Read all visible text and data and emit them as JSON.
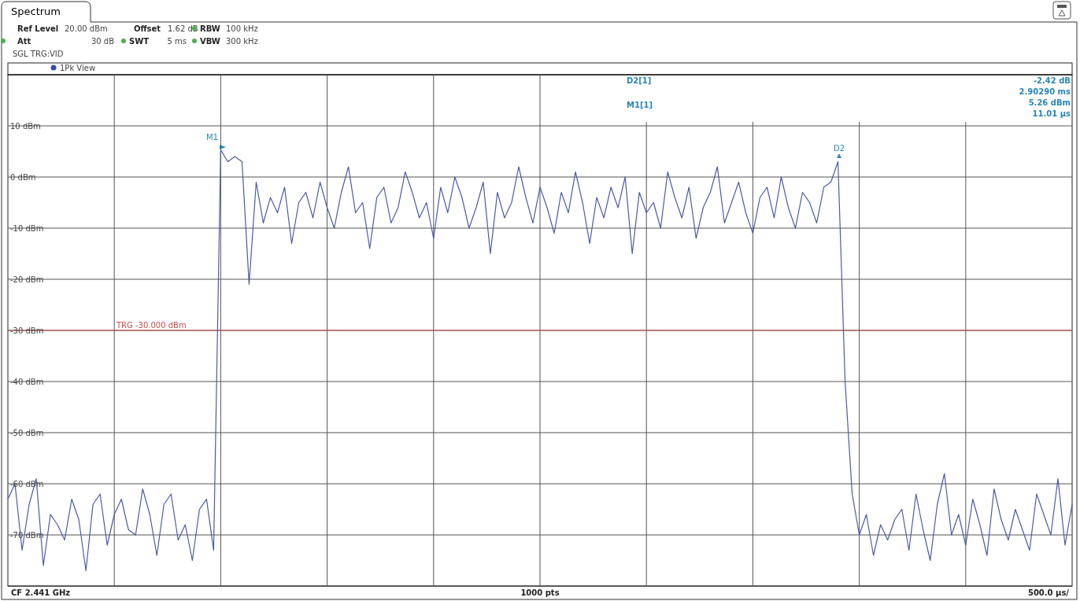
{
  "chart_data": {
    "type": "line",
    "categories": [
      null,
      null,
      null,
      null,
      null,
      null,
      null,
      null,
      null,
      null,
      null,
      null,
      null,
      null,
      null,
      null,
      null,
      null,
      null,
      null,
      null,
      null,
      null,
      null,
      null,
      null,
      null,
      null,
      null,
      null,
      null,
      null,
      null,
      null,
      null,
      null,
      null,
      null,
      null,
      null,
      null,
      null,
      null,
      null,
      null,
      null,
      null,
      null,
      null,
      null,
      null,
      null,
      null,
      null,
      null,
      null,
      null,
      null,
      null,
      null,
      null,
      null,
      null,
      null,
      null,
      null,
      null,
      null,
      null,
      null,
      null,
      null,
      null,
      null,
      null,
      null,
      null,
      null,
      null,
      null,
      null,
      null,
      null,
      null,
      null,
      null,
      null,
      null,
      null,
      null,
      null,
      null,
      null,
      null,
      null,
      null,
      null,
      null,
      null,
      null,
      null,
      null,
      null,
      null,
      null,
      null,
      null,
      null,
      null,
      null,
      null,
      null,
      null,
      null,
      null,
      null,
      null,
      null,
      null,
      null,
      null,
      null,
      null,
      null,
      null,
      null,
      null,
      null,
      null,
      null,
      null,
      null,
      null,
      null,
      null,
      null,
      null,
      null,
      null,
      null,
      null,
      null,
      null,
      null,
      null,
      null,
      null,
      null,
      null,
      null,
      null
    ],
    "series": [
      {
        "color": "#4a5aa8",
        "values": [
          -63,
          -60,
          -73,
          -64,
          -59,
          -76,
          -66,
          -68,
          -71,
          -63,
          -67,
          -77,
          -64,
          -62,
          -72,
          -66,
          -63,
          -69,
          -70,
          -61,
          -66,
          -74,
          -64,
          -62,
          -71,
          -68,
          -75,
          -65,
          -63,
          -73,
          5.3,
          3,
          4,
          3,
          -21,
          -1,
          -9,
          -4,
          -7,
          -2,
          -13,
          -5,
          -3,
          -8,
          -1,
          -6,
          -10,
          -3,
          2,
          -7,
          -5,
          -14,
          -4,
          -2,
          -9,
          -6,
          1,
          -3,
          -8,
          -5,
          -12,
          -2,
          -7,
          0,
          -4,
          -10,
          -6,
          -1,
          -15,
          -3,
          -8,
          -5,
          2,
          -4,
          -9,
          -2,
          -6,
          -11,
          -3,
          -7,
          1,
          -5,
          -13,
          -4,
          -8,
          -2,
          -6,
          0,
          -15,
          -3,
          -7,
          -5,
          -10,
          1,
          -4,
          -8,
          -2,
          -12,
          -6,
          -3,
          2,
          -9,
          -5,
          -1,
          -7,
          -11,
          -4,
          -2,
          -8,
          0,
          -6,
          -10,
          -3,
          -5,
          -9,
          -2,
          -1,
          3,
          -40,
          -62,
          -70,
          -66,
          -74,
          -68,
          -71,
          -67,
          -65,
          -73,
          -62,
          -69,
          -75,
          -64,
          -58,
          -70,
          -66,
          -72,
          -63,
          -68,
          -74,
          -61,
          -67,
          -71,
          -65,
          -69,
          -73,
          -62,
          -66,
          -70,
          -59,
          -72,
          -64
        ]
      }
    ],
    "ylim": [
      -80,
      20
    ],
    "yticks": [
      {
        "value": 10,
        "label": "10 dBm"
      },
      {
        "value": 0,
        "label": "0 dBm"
      },
      {
        "value": -10,
        "label": "-10 dBm"
      },
      {
        "value": -20,
        "label": "-20 dBm"
      },
      {
        "value": -30,
        "label": "-30 dBm"
      },
      {
        "value": -40,
        "label": "-40 dBm"
      },
      {
        "value": -50,
        "label": "-50 dBm"
      },
      {
        "value": -60,
        "label": "-60 dBm"
      },
      {
        "value": -70,
        "label": "-70 dBm"
      }
    ],
    "grid": true,
    "ref_lines": [
      {
        "axis": "y",
        "value": -30,
        "label": "TRG -30.000 dBm",
        "color": "#c0504d"
      }
    ],
    "annotations": [
      "Spectrum",
      "Ref Level",
      "20.00 dBm",
      "Offset",
      "1.62 dB",
      "RBW",
      "100 kHz",
      "Att",
      "30 dB",
      "SWT",
      "5 ms",
      "VBW",
      "300 kHz",
      "SGL TRG:VID",
      "1Pk View",
      "D2[1]",
      "-2.42 dB",
      "2.90290 ms",
      "M1[1]",
      "5.26 dBm",
      "11.01 µs",
      "M1",
      "D2",
      "CF 2.441 GHz",
      "1000 pts",
      "500.0 µs/"
    ]
  }
}
